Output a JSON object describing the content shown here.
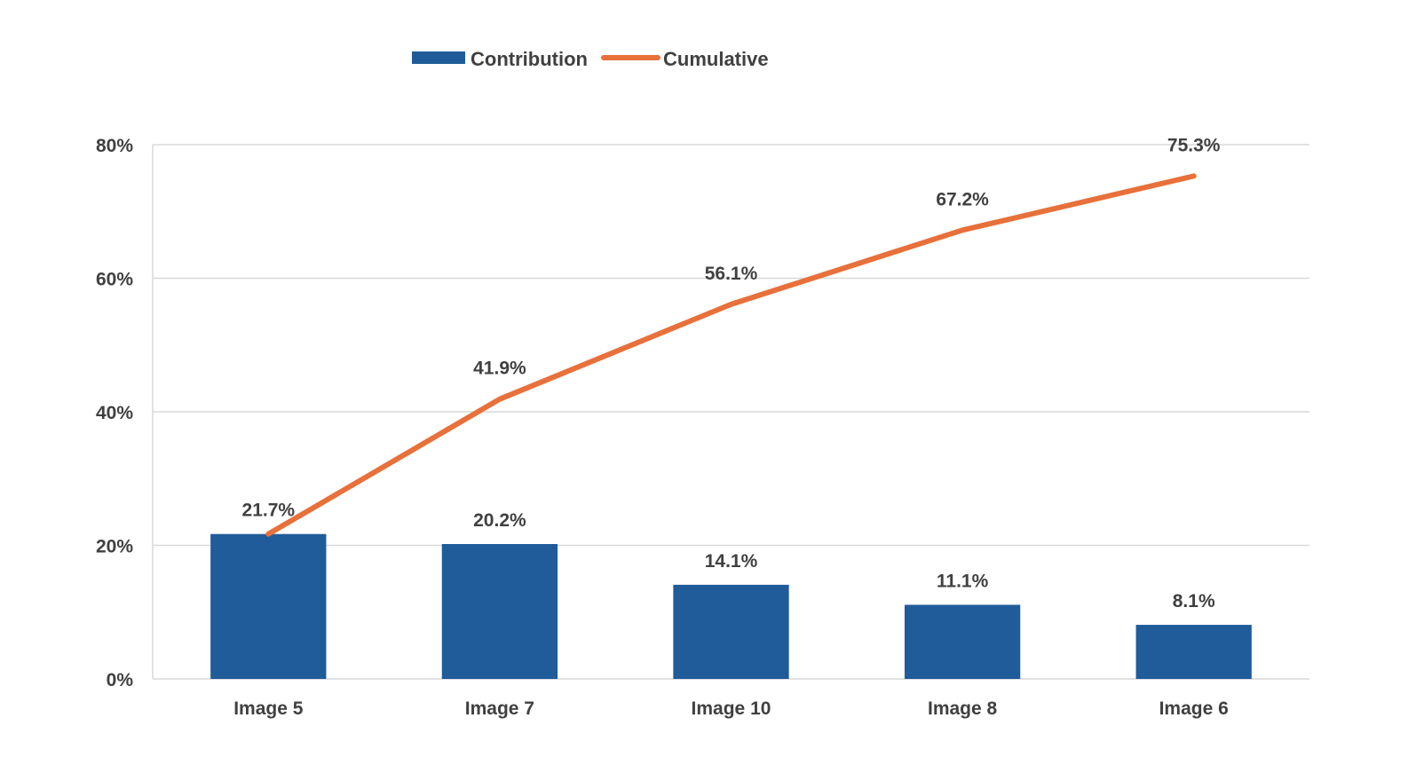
{
  "chart_data": {
    "type": "bar",
    "categories": [
      "Image 5",
      "Image 7",
      "Image 10",
      "Image 8",
      "Image 6"
    ],
    "series": [
      {
        "name": "Contribution",
        "type": "bar",
        "values": [
          21.7,
          20.2,
          14.1,
          11.1,
          8.1
        ],
        "labels": [
          "21.7%",
          "20.2%",
          "14.1%",
          "11.1%",
          "8.1%"
        ],
        "color": "#1F5C99"
      },
      {
        "name": "Cumulative",
        "type": "line",
        "values": [
          21.7,
          41.9,
          56.1,
          67.2,
          75.3
        ],
        "labels": [
          "21.7%",
          "41.9%",
          "56.1%",
          "67.2%",
          "75.3%"
        ],
        "color": "#E8703A"
      }
    ],
    "ylim": [
      0,
      80
    ],
    "yticks": [
      0,
      20,
      40,
      60,
      80
    ],
    "ytick_labels": [
      "0%",
      "20%",
      "40%",
      "60%",
      "80%"
    ],
    "grid": true,
    "legend_position": "top-center",
    "title": "",
    "xlabel": "",
    "ylabel": ""
  }
}
